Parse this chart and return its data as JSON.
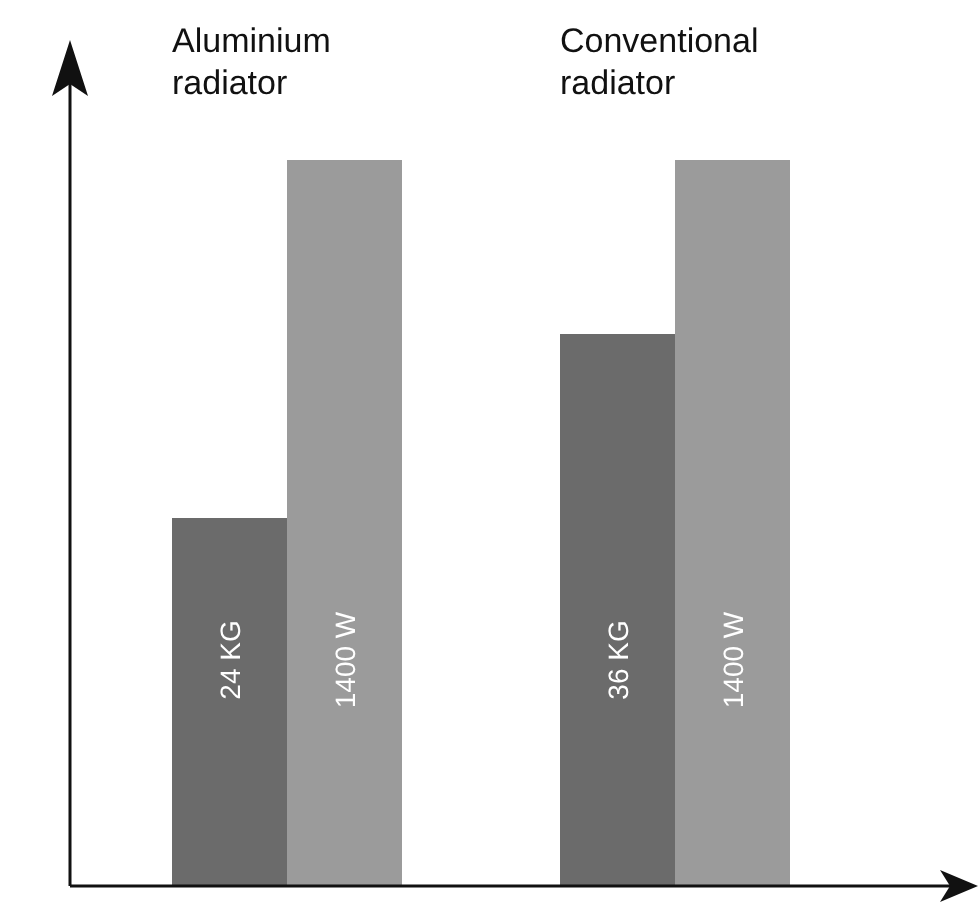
{
  "chart_data": {
    "type": "bar",
    "categories": [
      "Aluminium radiator",
      "Conventional radiator"
    ],
    "series": [
      {
        "color": "#6b6b6b",
        "values": [
          24,
          36
        ],
        "value_labels": [
          "24 KG",
          "36 KG"
        ]
      },
      {
        "color": "#9b9b9b",
        "axis": "y2",
        "values": [
          1400,
          1400
        ],
        "value_labels": [
          "1400 W",
          "1400 W"
        ]
      }
    ]
  }
}
